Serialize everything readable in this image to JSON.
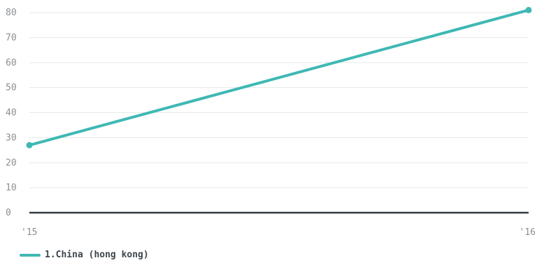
{
  "chart_data": {
    "type": "line",
    "x": [
      "'15",
      "'16"
    ],
    "yticks": [
      "0",
      "10",
      "20",
      "30",
      "40",
      "50",
      "60",
      "70",
      "80"
    ],
    "ylim": [
      0,
      80
    ],
    "grid": true,
    "legend_position": "bottom-left",
    "series": [
      {
        "name": "1.China (hong kong)",
        "values": [
          27,
          81
        ],
        "color": "#3fb8b4"
      }
    ]
  }
}
